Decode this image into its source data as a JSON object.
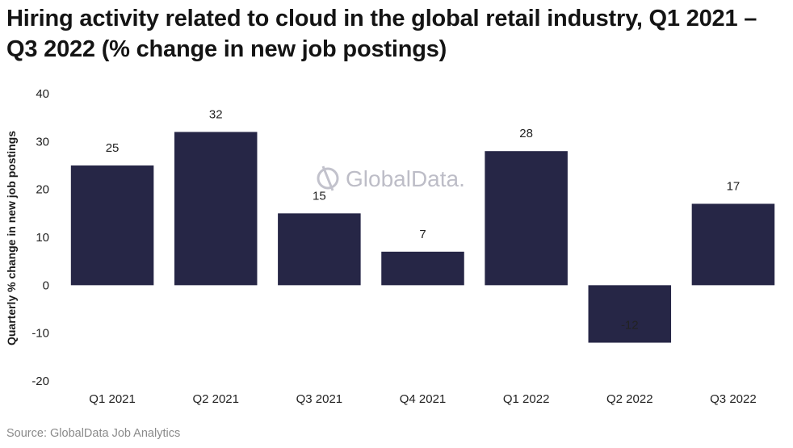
{
  "chart_data": {
    "type": "bar",
    "title": "Hiring activity related to cloud in the global retail industry, Q1 2021 – Q3 2022 (% change in new job postings)",
    "ylabel": "Quarterly % change in new job postings",
    "xlabel": "",
    "categories": [
      "Q1 2021",
      "Q2 2021",
      "Q3 2021",
      "Q4 2021",
      "Q1 2022",
      "Q2 2022",
      "Q3 2022"
    ],
    "values": [
      25,
      32,
      15,
      7,
      28,
      -12,
      17
    ],
    "ylim": [
      -20,
      40
    ],
    "yticks": [
      40,
      30,
      20,
      10,
      0,
      -10,
      -20
    ],
    "grid": false,
    "legend": "none",
    "bar_color": "#262646"
  },
  "source": "Source: GlobalData Job Analytics",
  "watermark": "GlobalData."
}
